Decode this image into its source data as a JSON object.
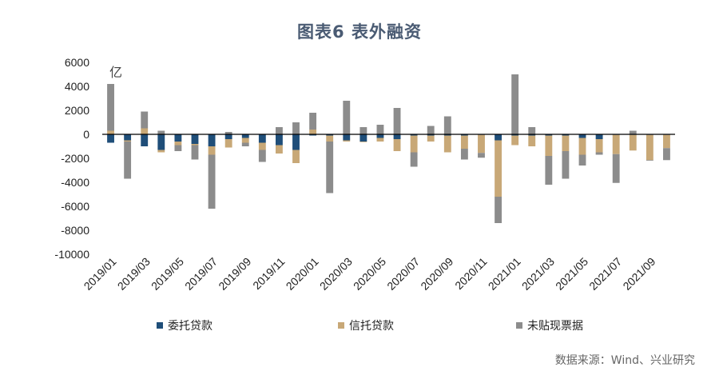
{
  "title": "图表6 表外融资",
  "source": "数据来源：Wind、兴业研究",
  "colors": {
    "entrusted": "#1f4e79",
    "trust": "#c8a877",
    "bills": "#8c8c8c",
    "axis": "#000000"
  },
  "chart_data": {
    "type": "bar",
    "stacked": true,
    "unit_label": "亿",
    "ylim": [
      -10000,
      6000
    ],
    "yticks": [
      -10000,
      -8000,
      -6000,
      -4000,
      -2000,
      0,
      2000,
      4000,
      6000
    ],
    "xtick_labels": [
      "2019/01",
      "2019/03",
      "2019/05",
      "2019/07",
      "2019/09",
      "2019/11",
      "2020/01",
      "2020/03",
      "2020/05",
      "2020/07",
      "2020/09",
      "2020/11",
      "2021/01",
      "2021/03",
      "2021/05",
      "2021/07",
      "2021/09"
    ],
    "categories": [
      "2019/01",
      "2019/02",
      "2019/03",
      "2019/04",
      "2019/05",
      "2019/06",
      "2019/07",
      "2019/08",
      "2019/09",
      "2019/10",
      "2019/11",
      "2019/12",
      "2020/01",
      "2020/02",
      "2020/03",
      "2020/04",
      "2020/05",
      "2020/06",
      "2020/07",
      "2020/08",
      "2020/09",
      "2020/10",
      "2020/11",
      "2020/12",
      "2021/01",
      "2021/02",
      "2021/03",
      "2021/04",
      "2021/05",
      "2021/06",
      "2021/07",
      "2021/08",
      "2021/09",
      "2021/10"
    ],
    "series": [
      {
        "name": "委托贷款",
        "color_key": "entrusted",
        "values": [
          -700,
          -500,
          -1000,
          -1300,
          -600,
          -800,
          -1000,
          -400,
          -300,
          -700,
          -900,
          -1300,
          -100,
          -100,
          -500,
          -600,
          -300,
          -400,
          -100,
          -100,
          -100,
          -100,
          -50,
          -500,
          -100,
          -100,
          -100,
          -100,
          -300,
          -400,
          -50,
          -50,
          -50,
          -50
        ]
      },
      {
        "name": "信托贷款",
        "color_key": "trust",
        "values": [
          300,
          -100,
          500,
          -200,
          -300,
          -100,
          -700,
          -700,
          -400,
          -600,
          -700,
          -1100,
          400,
          -500,
          -100,
          -50,
          -300,
          -1000,
          -1400,
          -500,
          -1400,
          -1100,
          -1500,
          -4700,
          -800,
          -900,
          -1700,
          -1300,
          -1400,
          -1100,
          -1600,
          -1300,
          -2100,
          -1100
        ]
      },
      {
        "name": "未贴现票据",
        "color_key": "bills",
        "values": [
          3900,
          -3100,
          1400,
          300,
          -500,
          -1200,
          -4500,
          200,
          -300,
          -1000,
          600,
          1000,
          1400,
          -4300,
          2800,
          600,
          800,
          2200,
          -1200,
          700,
          1500,
          -900,
          -400,
          -2200,
          5000,
          600,
          -2400,
          -2300,
          -900,
          -200,
          -2400,
          300,
          -50,
          -1000
        ]
      }
    ]
  }
}
